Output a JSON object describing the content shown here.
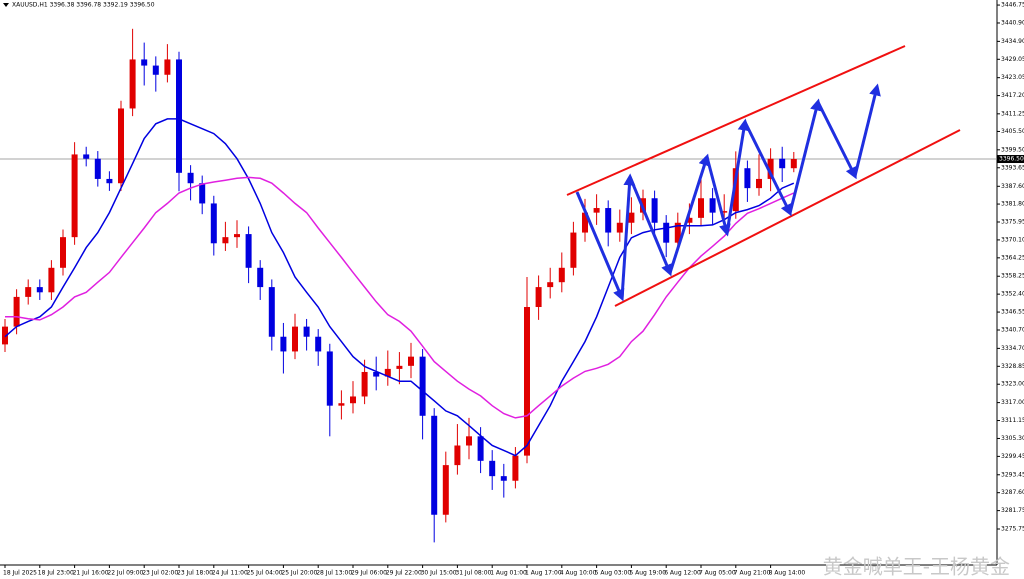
{
  "chart_data": {
    "type": "candlestick",
    "title": "XAUUSD,H1  3396.38 3396.78 3392.19 3396.50",
    "watermark": "黄金喊单王-王杨黄金",
    "up_color": "#e00000",
    "down_color": "#0000e0",
    "grid": false,
    "ylim": [
      3264.0,
      3448.4
    ],
    "yticks": [
      3446.75,
      {
        "value": 3440.9,
        "label": "3440.90"
      },
      {
        "value": 3434.9,
        "label": "3434.90"
      },
      3429.05,
      3423.05,
      {
        "value": 3417.2,
        "label": "3417.20"
      },
      3411.25,
      {
        "value": 3405.5,
        "label": "3405.50"
      },
      {
        "value": 3399.5,
        "label": "3399.50"
      },
      3393.65,
      {
        "value": 3387.6,
        "label": "3387.60"
      },
      {
        "value": 3381.8,
        "label": "3381.80"
      },
      3375.95,
      {
        "value": 3370.1,
        "label": "3370.10"
      },
      3364.25,
      3358.25,
      {
        "value": 3352.4,
        "label": "3352.40"
      },
      3346.55,
      {
        "value": 3340.7,
        "label": "3340.70"
      },
      {
        "value": 3334.7,
        "label": "3334.70"
      },
      3328.85,
      {
        "value": 3323,
        "label": "3323.00"
      },
      {
        "value": 3317,
        "label": "3317.00"
      },
      3311.15,
      {
        "value": 3305.3,
        "label": "3305.30"
      },
      3299.45,
      3293.45,
      {
        "value": 3287.6,
        "label": "3287.60"
      },
      3281.75,
      3275.75
    ],
    "current_price": {
      "value": 3396.5,
      "label": "3396.50"
    },
    "categories": [
      "18 Jul 2025",
      null,
      null,
      "18 Jul 23:00",
      null,
      null,
      "21 Jul 16:00",
      null,
      null,
      "22 Jul 09:00",
      null,
      null,
      "23 Jul 02:00",
      null,
      null,
      "23 Jul 18:00",
      null,
      null,
      "24 Jul 11:00",
      null,
      null,
      "25 Jul 04:00",
      null,
      null,
      "25 Jul 20:00",
      null,
      null,
      "28 Jul 13:00",
      null,
      null,
      "29 Jul 06:00",
      null,
      null,
      "29 Jul 22:00",
      null,
      null,
      "30 Jul 15:00",
      null,
      null,
      "31 Jul 08:00",
      null,
      null,
      "1 Aug 01:00",
      null,
      null,
      "1 Aug 17:00",
      null,
      null,
      "4 Aug 10:00",
      null,
      null,
      "5 Aug 03:00",
      null,
      null,
      "5 Aug 19:00",
      null,
      null,
      "6 Aug 12:00",
      null,
      null,
      "7 Aug 05:00",
      null,
      null,
      "7 Aug 21:00",
      null,
      null,
      "8 Aug 14:00",
      null,
      null
    ],
    "open": [
      3336.0,
      3341.8,
      3351.5,
      3354.7,
      3353.0,
      3361.0,
      3371.0,
      3398.0,
      3396.6,
      3390.0,
      3388.6,
      3413.0,
      3429.0,
      3427.0,
      3424.0,
      3429.0,
      3392.0,
      3388.6,
      3382.0,
      3369.0,
      3371.0,
      3372.0,
      3361.0,
      3354.7,
      3338.5,
      3333.7,
      3341.8,
      3338.5,
      3333.7,
      3316.0,
      3316.8,
      3319.0,
      3327.0,
      3325.5,
      3328.0,
      3329.0,
      3332.0,
      3312.7,
      3280.4,
      3296.6,
      3303.0,
      3306.0,
      3298.0,
      3293.0,
      3291.5,
      3299.7,
      3348.2,
      3354.7,
      3356.3,
      3361.0,
      3372.5,
      3379.0,
      3380.5,
      3372.5,
      3375.7,
      3379.0,
      3383.7,
      3375.7,
      3369.2,
      3375.7,
      3377.3,
      3383.7,
      3379.0,
      3379.5,
      3393.5,
      3387.0,
      3390.0,
      3396.6,
      3393.5
    ],
    "high": [
      3344.3,
      3354.0,
      3357.2,
      3357.2,
      3363.5,
      3373.5,
      3402.0,
      3400.5,
      3399.1,
      3392.5,
      3415.5,
      3439.0,
      3434.5,
      3430.0,
      3434.0,
      3431.5,
      3394.5,
      3391.1,
      3384.5,
      3376.0,
      3376.5,
      3374.5,
      3363.5,
      3357.2,
      3343.0,
      3346.0,
      3344.3,
      3341.0,
      3336.2,
      3321.0,
      3324.0,
      3331.0,
      3332.0,
      3334.0,
      3333.5,
      3336.5,
      3334.5,
      3315.2,
      3301.0,
      3310.0,
      3312.0,
      3309.0,
      3301.5,
      3297.0,
      3302.5,
      3358.0,
      3358.5,
      3361.0,
      3366.0,
      3376.0,
      3383.5,
      3385.0,
      3383.0,
      3380.0,
      3384.0,
      3386.5,
      3386.2,
      3378.2,
      3379.0,
      3382.0,
      3392.0,
      3387.0,
      3385.0,
      3399.0,
      3396.0,
      3398.0,
      3400.0,
      3400.5,
      3398.8
    ],
    "low": [
      3333.5,
      3339.3,
      3349.0,
      3350.5,
      3350.5,
      3358.5,
      3368.5,
      3394.1,
      3387.5,
      3386.1,
      3386.1,
      3410.5,
      3420.5,
      3418.5,
      3421.5,
      3386.0,
      3383.0,
      3378.5,
      3365.0,
      3366.5,
      3367.5,
      3356.0,
      3350.5,
      3334.0,
      3326.5,
      3331.2,
      3334.0,
      3329.0,
      3306.0,
      3311.5,
      3313.5,
      3316.5,
      3321.0,
      3322.5,
      3323.0,
      3325.0,
      3305.0,
      3271.4,
      3277.9,
      3293.5,
      3298.5,
      3294.0,
      3288.5,
      3286.0,
      3289.0,
      3297.2,
      3344.0,
      3351.0,
      3353.0,
      3358.5,
      3369.5,
      3375.0,
      3368.0,
      3369.5,
      3372.0,
      3376.5,
      3371.0,
      3364.5,
      3366.7,
      3372.0,
      3374.8,
      3375.0,
      3375.5,
      3377.0,
      3382.5,
      3384.5,
      3386.0,
      3389.0,
      3392.2
    ],
    "close": [
      3341.8,
      3351.5,
      3354.7,
      3353.0,
      3361.0,
      3371.0,
      3398.0,
      3396.6,
      3390.0,
      3388.6,
      3413.0,
      3429.0,
      3427.0,
      3424.0,
      3429.0,
      3392.0,
      3388.6,
      3382.0,
      3369.0,
      3371.0,
      3372.0,
      3361.0,
      3354.7,
      3338.5,
      3333.7,
      3341.8,
      3338.5,
      3333.7,
      3316.0,
      3316.8,
      3319.0,
      3327.0,
      3325.5,
      3328.0,
      3329.0,
      3332.0,
      3312.7,
      3280.4,
      3296.6,
      3303.0,
      3306.0,
      3298.0,
      3293.0,
      3291.5,
      3299.7,
      3348.2,
      3354.7,
      3356.3,
      3361.0,
      3372.5,
      3379.0,
      3380.5,
      3372.5,
      3375.7,
      3379.0,
      3383.7,
      3375.7,
      3369.2,
      3375.7,
      3377.3,
      3383.7,
      3379.0,
      3379.5,
      3393.5,
      3387.0,
      3390.0,
      3396.6,
      3393.5,
      3396.5
    ],
    "series": [
      {
        "color": "#0000e0",
        "values": [
          3338.5,
          3341.8,
          3343.5,
          3345.0,
          3348.2,
          3354.7,
          3361.0,
          3367.6,
          3372.5,
          3379.0,
          3387.0,
          3395.0,
          3403.2,
          3408.0,
          3409.6,
          3409.6,
          3408.0,
          3406.4,
          3404.8,
          3401.5,
          3396.6,
          3390.0,
          3382.0,
          3372.5,
          3366.0,
          3358.0,
          3353.0,
          3348.2,
          3341.8,
          3336.9,
          3332.0,
          3328.8,
          3327.2,
          3325.6,
          3324.0,
          3324.0,
          3320.8,
          3317.6,
          3314.3,
          3312.7,
          3309.5,
          3306.2,
          3303.0,
          3301.4,
          3299.7,
          3303.0,
          3309.5,
          3316.0,
          3324.0,
          3330.4,
          3336.9,
          3345.0,
          3354.7,
          3364.4,
          3370.8,
          3372.5,
          3373.4,
          3374.0,
          3374.7,
          3374.7,
          3374.7,
          3375.0,
          3376.7,
          3379.0,
          3380.0,
          3381.3,
          3383.7,
          3387.0,
          3388.6
        ]
      },
      {
        "color": "#e020e0",
        "values": [
          3345.0,
          3345.0,
          3344.4,
          3344.0,
          3345.7,
          3348.2,
          3351.5,
          3353.0,
          3356.3,
          3359.5,
          3364.4,
          3369.2,
          3374.0,
          3379.0,
          3382.0,
          3385.4,
          3387.0,
          3388.3,
          3389.0,
          3389.6,
          3390.2,
          3390.5,
          3390.2,
          3388.6,
          3385.4,
          3382.0,
          3379.0,
          3374.0,
          3369.2,
          3364.4,
          3359.5,
          3354.7,
          3349.9,
          3345.7,
          3343.5,
          3340.3,
          3335.4,
          3330.4,
          3327.2,
          3324.0,
          3321.4,
          3319.2,
          3316.0,
          3313.4,
          3312.0,
          3312.7,
          3316.0,
          3319.2,
          3322.4,
          3325.0,
          3327.2,
          3328.2,
          3329.5,
          3332.0,
          3336.9,
          3340.3,
          3345.7,
          3351.5,
          3356.3,
          3361.0,
          3364.8,
          3368.0,
          3371.3,
          3375.5,
          3378.8,
          3380.3,
          3382.0,
          3383.7,
          3385.4
        ]
      }
    ]
  }
}
